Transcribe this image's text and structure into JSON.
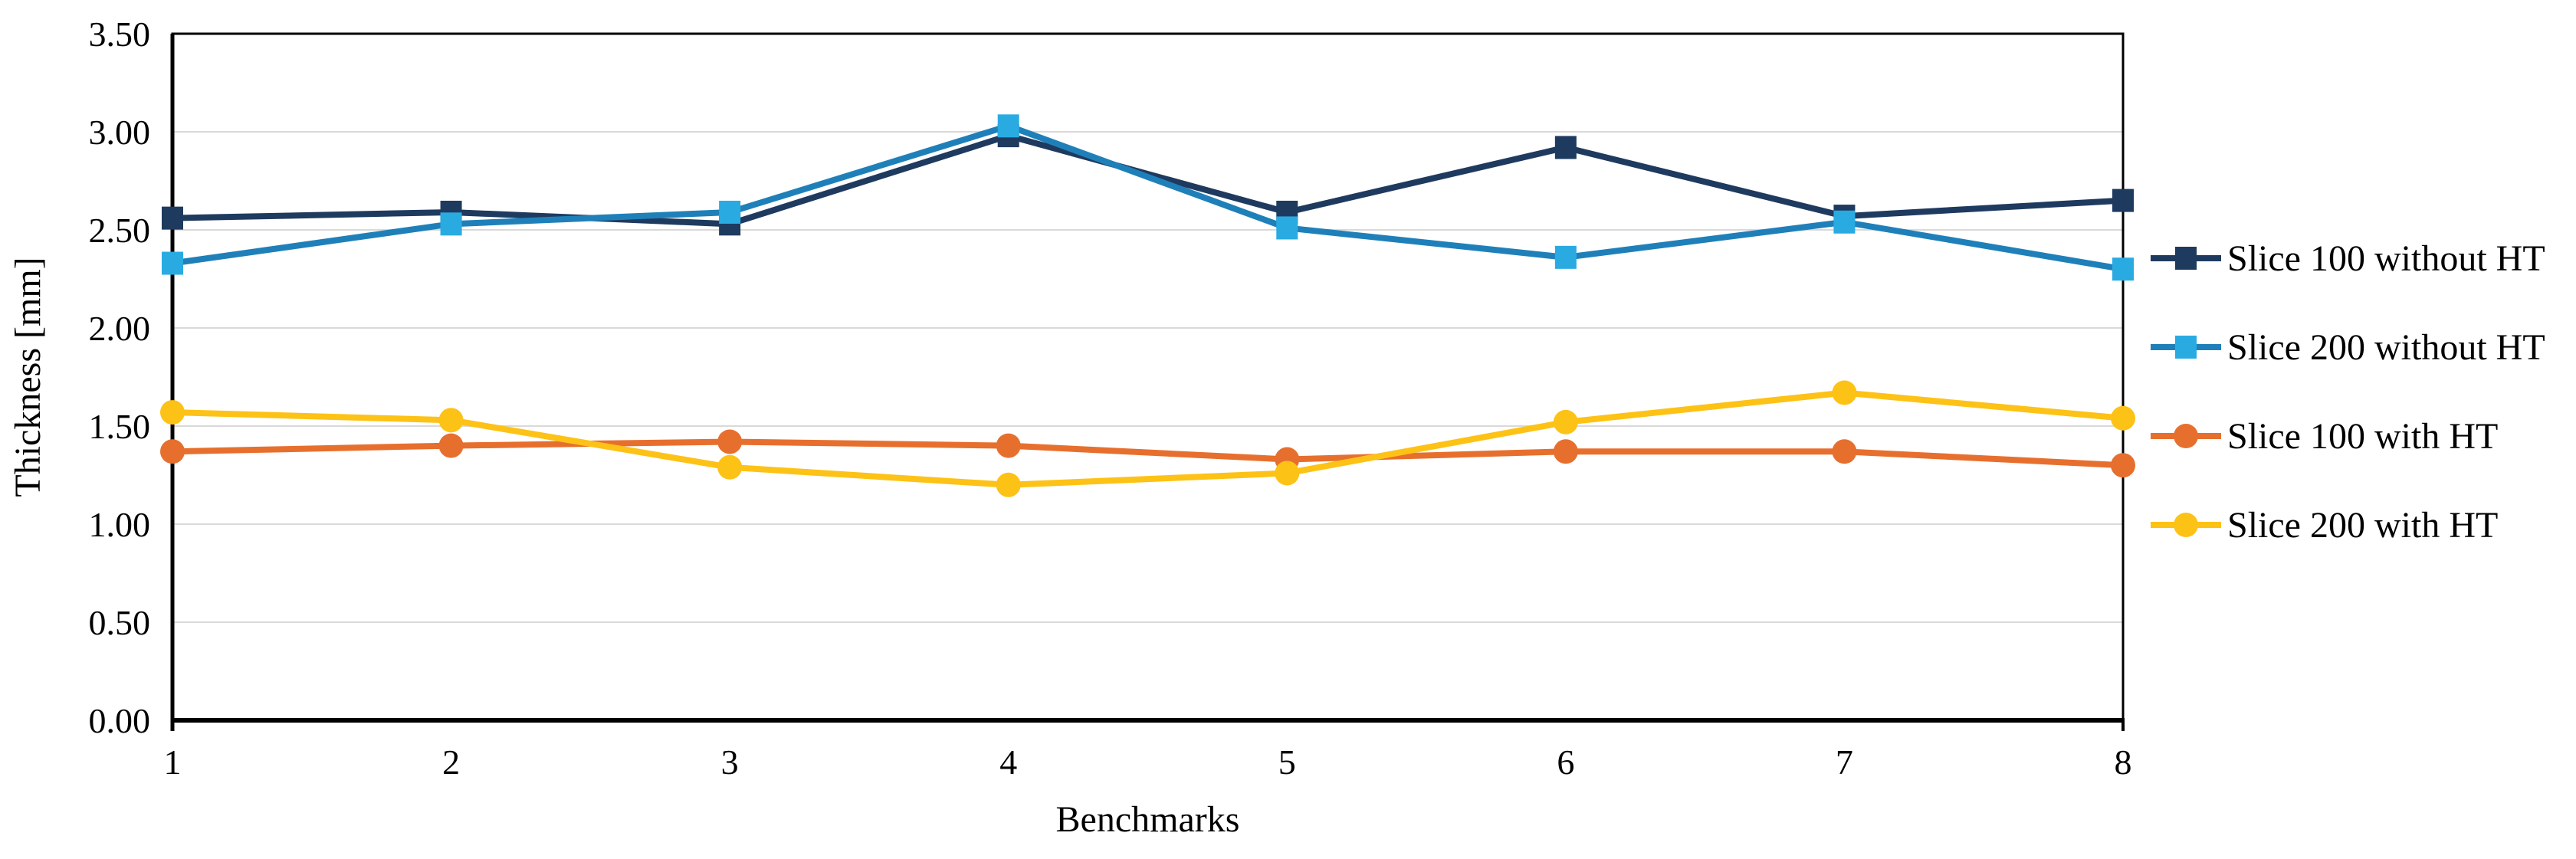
{
  "figure": {
    "background": "#ffffff"
  },
  "chart_data": {
    "type": "line",
    "title": "",
    "xlabel": "Benchmarks",
    "ylabel": "Thickness [mm]",
    "categories": [
      "1",
      "2",
      "3",
      "4",
      "5",
      "6",
      "7",
      "8"
    ],
    "y_ticks": [
      "0.00",
      "0.50",
      "1.00",
      "1.50",
      "2.00",
      "2.50",
      "3.00",
      "3.50"
    ],
    "ylim": [
      0,
      3.5
    ],
    "grid": "horizontal",
    "legend_position": "right",
    "series": [
      {
        "name": "Slice 100 without HT",
        "marker": "square",
        "line_color": "#1f3a5f",
        "marker_color": "#1f3a5f",
        "values": [
          2.56,
          2.59,
          2.53,
          2.98,
          2.59,
          2.92,
          2.57,
          2.65
        ]
      },
      {
        "name": "Slice 200 without HT",
        "marker": "square",
        "line_color": "#1f80b9",
        "marker_color": "#29abe2",
        "values": [
          2.33,
          2.53,
          2.59,
          3.03,
          2.51,
          2.36,
          2.54,
          2.3
        ]
      },
      {
        "name": "Slice 100 with HT",
        "marker": "circle",
        "line_color": "#e76f2e",
        "marker_color": "#e76f2e",
        "values": [
          1.37,
          1.4,
          1.42,
          1.4,
          1.33,
          1.37,
          1.37,
          1.3
        ]
      },
      {
        "name": "Slice 200 with HT",
        "marker": "circle",
        "line_color": "#fdc216",
        "marker_color": "#fdc216",
        "values": [
          1.57,
          1.53,
          1.29,
          1.2,
          1.26,
          1.52,
          1.67,
          1.54
        ]
      }
    ],
    "colors": {
      "grid": "#d9d9d9",
      "axis": "#000000",
      "text": "#000000"
    }
  }
}
